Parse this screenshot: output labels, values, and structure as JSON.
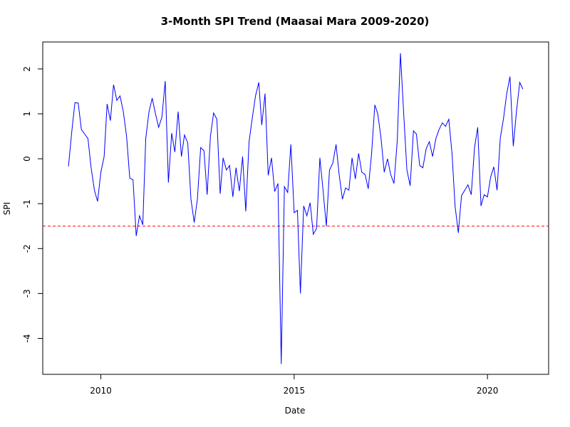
{
  "chart_data": {
    "type": "line",
    "title": "3-Month SPI Trend (Maasai Mara 2009-2020)",
    "xlabel": "Date",
    "ylabel": "SPI",
    "xlim": [
      "2008-07-01",
      "2021-08-01"
    ],
    "ylim": [
      -4.8,
      2.6
    ],
    "x_ticks": [
      {
        "date": "2010-01-01",
        "label": "2010"
      },
      {
        "date": "2015-01-01",
        "label": "2015"
      },
      {
        "date": "2020-01-01",
        "label": "2020"
      }
    ],
    "y_ticks": [
      {
        "value": 2,
        "label": "2"
      },
      {
        "value": 1,
        "label": "1"
      },
      {
        "value": 0,
        "label": "0"
      },
      {
        "value": -1,
        "label": "-1"
      },
      {
        "value": -2,
        "label": "-2"
      },
      {
        "value": -3,
        "label": "-3"
      },
      {
        "value": -4,
        "label": "-4"
      }
    ],
    "threshold": {
      "value": -1.5,
      "color": "#ff0000",
      "style": "dashed"
    },
    "grid": false,
    "series": [
      {
        "color": "#0000ff",
        "points": [
          {
            "x": "2009-03-01",
            "y": -0.17
          },
          {
            "x": "2009-04-01",
            "y": 0.6
          },
          {
            "x": "2009-05-01",
            "y": 1.25
          },
          {
            "x": "2009-06-01",
            "y": 1.24
          },
          {
            "x": "2009-07-01",
            "y": 0.65
          },
          {
            "x": "2009-08-01",
            "y": 0.55
          },
          {
            "x": "2009-09-01",
            "y": 0.45
          },
          {
            "x": "2009-10-01",
            "y": -0.2
          },
          {
            "x": "2009-11-01",
            "y": -0.7
          },
          {
            "x": "2009-12-01",
            "y": -0.95
          },
          {
            "x": "2010-01-01",
            "y": -0.3
          },
          {
            "x": "2010-02-01",
            "y": 0.05
          },
          {
            "x": "2010-03-01",
            "y": 1.22
          },
          {
            "x": "2010-04-01",
            "y": 0.85
          },
          {
            "x": "2010-05-01",
            "y": 1.65
          },
          {
            "x": "2010-06-01",
            "y": 1.3
          },
          {
            "x": "2010-07-01",
            "y": 1.4
          },
          {
            "x": "2010-08-01",
            "y": 1.05
          },
          {
            "x": "2010-09-01",
            "y": 0.5
          },
          {
            "x": "2010-10-01",
            "y": -0.43
          },
          {
            "x": "2010-11-01",
            "y": -0.47
          },
          {
            "x": "2010-12-01",
            "y": -1.72
          },
          {
            "x": "2011-01-01",
            "y": -1.27
          },
          {
            "x": "2011-02-01",
            "y": -1.47
          },
          {
            "x": "2011-03-01",
            "y": 0.45
          },
          {
            "x": "2011-04-01",
            "y": 1.05
          },
          {
            "x": "2011-05-01",
            "y": 1.35
          },
          {
            "x": "2011-06-01",
            "y": 1.0
          },
          {
            "x": "2011-07-01",
            "y": 0.7
          },
          {
            "x": "2011-08-01",
            "y": 0.93
          },
          {
            "x": "2011-09-01",
            "y": 1.73
          },
          {
            "x": "2011-10-01",
            "y": -0.53
          },
          {
            "x": "2011-11-01",
            "y": 0.57
          },
          {
            "x": "2011-12-01",
            "y": 0.15
          },
          {
            "x": "2012-01-01",
            "y": 1.05
          },
          {
            "x": "2012-02-01",
            "y": 0.05
          },
          {
            "x": "2012-03-01",
            "y": 0.53
          },
          {
            "x": "2012-04-01",
            "y": 0.35
          },
          {
            "x": "2012-05-01",
            "y": -0.9
          },
          {
            "x": "2012-06-01",
            "y": -1.42
          },
          {
            "x": "2012-07-01",
            "y": -0.9
          },
          {
            "x": "2012-08-01",
            "y": 0.25
          },
          {
            "x": "2012-09-01",
            "y": 0.18
          },
          {
            "x": "2012-10-01",
            "y": -0.8
          },
          {
            "x": "2012-11-01",
            "y": 0.5
          },
          {
            "x": "2012-12-01",
            "y": 1.02
          },
          {
            "x": "2013-01-01",
            "y": 0.88
          },
          {
            "x": "2013-02-01",
            "y": -0.78
          },
          {
            "x": "2013-03-01",
            "y": 0.02
          },
          {
            "x": "2013-04-01",
            "y": -0.25
          },
          {
            "x": "2013-05-01",
            "y": -0.15
          },
          {
            "x": "2013-06-01",
            "y": -0.85
          },
          {
            "x": "2013-07-01",
            "y": -0.2
          },
          {
            "x": "2013-08-01",
            "y": -0.72
          },
          {
            "x": "2013-09-01",
            "y": 0.05
          },
          {
            "x": "2013-10-01",
            "y": -1.17
          },
          {
            "x": "2013-11-01",
            "y": 0.38
          },
          {
            "x": "2013-12-01",
            "y": 0.9
          },
          {
            "x": "2014-01-01",
            "y": 1.4
          },
          {
            "x": "2014-02-01",
            "y": 1.7
          },
          {
            "x": "2014-03-01",
            "y": 0.75
          },
          {
            "x": "2014-04-01",
            "y": 1.45
          },
          {
            "x": "2014-05-01",
            "y": -0.37
          },
          {
            "x": "2014-06-01",
            "y": 0.02
          },
          {
            "x": "2014-07-01",
            "y": -0.73
          },
          {
            "x": "2014-08-01",
            "y": -0.55
          },
          {
            "x": "2014-09-01",
            "y": -4.57
          },
          {
            "x": "2014-10-01",
            "y": -0.62
          },
          {
            "x": "2014-11-01",
            "y": -0.75
          },
          {
            "x": "2014-12-01",
            "y": 0.32
          },
          {
            "x": "2015-01-01",
            "y": -1.2
          },
          {
            "x": "2015-02-01",
            "y": -1.15
          },
          {
            "x": "2015-03-01",
            "y": -3.0
          },
          {
            "x": "2015-04-01",
            "y": -1.05
          },
          {
            "x": "2015-05-01",
            "y": -1.27
          },
          {
            "x": "2015-06-01",
            "y": -0.98
          },
          {
            "x": "2015-07-01",
            "y": -1.68
          },
          {
            "x": "2015-08-01",
            "y": -1.55
          },
          {
            "x": "2015-09-01",
            "y": 0.02
          },
          {
            "x": "2015-10-01",
            "y": -0.7
          },
          {
            "x": "2015-11-01",
            "y": -1.5
          },
          {
            "x": "2015-12-01",
            "y": -0.25
          },
          {
            "x": "2016-01-01",
            "y": -0.1
          },
          {
            "x": "2016-02-01",
            "y": 0.32
          },
          {
            "x": "2016-03-01",
            "y": -0.35
          },
          {
            "x": "2016-04-01",
            "y": -0.9
          },
          {
            "x": "2016-05-01",
            "y": -0.65
          },
          {
            "x": "2016-06-01",
            "y": -0.7
          },
          {
            "x": "2016-07-01",
            "y": 0.02
          },
          {
            "x": "2016-08-01",
            "y": -0.45
          },
          {
            "x": "2016-09-01",
            "y": 0.12
          },
          {
            "x": "2016-10-01",
            "y": -0.3
          },
          {
            "x": "2016-11-01",
            "y": -0.35
          },
          {
            "x": "2016-12-01",
            "y": -0.67
          },
          {
            "x": "2017-01-01",
            "y": 0.1
          },
          {
            "x": "2017-02-01",
            "y": 1.2
          },
          {
            "x": "2017-03-01",
            "y": 1.0
          },
          {
            "x": "2017-04-01",
            "y": 0.45
          },
          {
            "x": "2017-05-01",
            "y": -0.3
          },
          {
            "x": "2017-06-01",
            "y": 0.0
          },
          {
            "x": "2017-07-01",
            "y": -0.35
          },
          {
            "x": "2017-08-01",
            "y": -0.55
          },
          {
            "x": "2017-09-01",
            "y": 0.4
          },
          {
            "x": "2017-10-01",
            "y": 2.35
          },
          {
            "x": "2017-11-01",
            "y": 1.0
          },
          {
            "x": "2017-12-01",
            "y": -0.25
          },
          {
            "x": "2018-01-01",
            "y": -0.6
          },
          {
            "x": "2018-02-01",
            "y": 0.62
          },
          {
            "x": "2018-03-01",
            "y": 0.55
          },
          {
            "x": "2018-04-01",
            "y": -0.15
          },
          {
            "x": "2018-05-01",
            "y": -0.2
          },
          {
            "x": "2018-06-01",
            "y": 0.22
          },
          {
            "x": "2018-07-01",
            "y": 0.38
          },
          {
            "x": "2018-08-01",
            "y": 0.05
          },
          {
            "x": "2018-09-01",
            "y": 0.45
          },
          {
            "x": "2018-10-01",
            "y": 0.65
          },
          {
            "x": "2018-11-01",
            "y": 0.8
          },
          {
            "x": "2018-12-01",
            "y": 0.72
          },
          {
            "x": "2019-01-01",
            "y": 0.88
          },
          {
            "x": "2019-02-01",
            "y": 0.1
          },
          {
            "x": "2019-03-01",
            "y": -1.05
          },
          {
            "x": "2019-04-01",
            "y": -1.65
          },
          {
            "x": "2019-05-01",
            "y": -0.82
          },
          {
            "x": "2019-06-01",
            "y": -0.7
          },
          {
            "x": "2019-07-01",
            "y": -0.58
          },
          {
            "x": "2019-08-01",
            "y": -0.8
          },
          {
            "x": "2019-09-01",
            "y": 0.25
          },
          {
            "x": "2019-10-01",
            "y": 0.7
          },
          {
            "x": "2019-11-01",
            "y": -1.05
          },
          {
            "x": "2019-12-01",
            "y": -0.8
          },
          {
            "x": "2020-01-01",
            "y": -0.85
          },
          {
            "x": "2020-02-01",
            "y": -0.4
          },
          {
            "x": "2020-03-01",
            "y": -0.18
          },
          {
            "x": "2020-04-01",
            "y": -0.7
          },
          {
            "x": "2020-05-01",
            "y": 0.45
          },
          {
            "x": "2020-06-01",
            "y": 0.9
          },
          {
            "x": "2020-07-01",
            "y": 1.45
          },
          {
            "x": "2020-08-01",
            "y": 1.83
          },
          {
            "x": "2020-09-01",
            "y": 0.28
          },
          {
            "x": "2020-10-01",
            "y": 1.05
          },
          {
            "x": "2020-11-01",
            "y": 1.7
          },
          {
            "x": "2020-12-01",
            "y": 1.55
          }
        ]
      }
    ]
  }
}
